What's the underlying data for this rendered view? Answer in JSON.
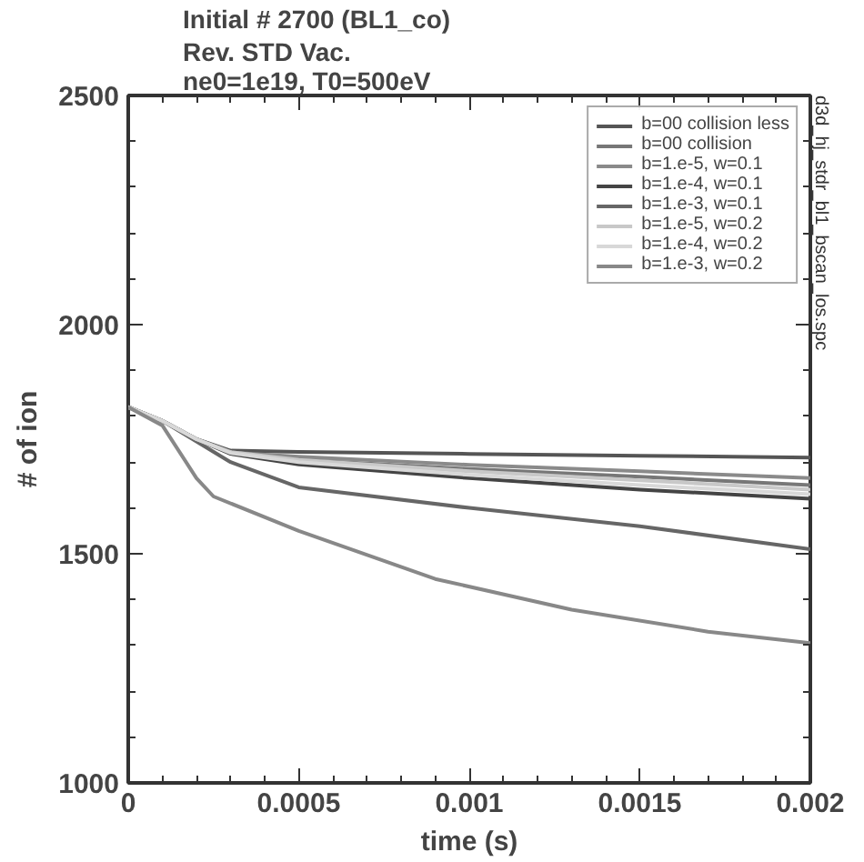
{
  "chart_data": {
    "type": "line",
    "title": "Initial  #  2700 (BL1_co)",
    "subtitle": "Rev. STD Vac.\nne0=1e19, T0=500eV",
    "xlabel": "time (s)",
    "ylabel": "# of ion",
    "x": [
      0,
      0.0001,
      0.0002,
      0.0003,
      0.0005,
      0.001,
      0.0015,
      0.002
    ],
    "series": [
      {
        "name": "b=00 collision less",
        "color": "#555555",
        "values": [
          1820,
          1790,
          1750,
          1725,
          1722,
          1718,
          1714,
          1710
        ]
      },
      {
        "name": "b=00 collision",
        "color": "#777777",
        "values": [
          1820,
          1790,
          1750,
          1722,
          1705,
          1685,
          1668,
          1650
        ]
      },
      {
        "name": "b=1.e-5, w=0.1",
        "color": "#8a8a8a",
        "values": [
          1820,
          1790,
          1750,
          1721,
          1712,
          1694,
          1680,
          1665
        ]
      },
      {
        "name": "b=1.e-4, w=0.1",
        "color": "#444444",
        "values": [
          1820,
          1790,
          1750,
          1718,
          1695,
          1665,
          1640,
          1620
        ]
      },
      {
        "name": "b=1.e-3, w=0.1",
        "color": "#666666",
        "values": [
          1820,
          1790,
          1745,
          1700,
          1645,
          1600,
          1560,
          1510
        ]
      },
      {
        "name": "b=1.e-5, w=0.2",
        "color": "#c8c8c8",
        "values": [
          1820,
          1790,
          1750,
          1722,
          1705,
          1680,
          1660,
          1640
        ]
      },
      {
        "name": "b=1.e-4, w=0.2",
        "color": "#d8d8d8",
        "values": [
          1820,
          1790,
          1750,
          1720,
          1700,
          1672,
          1650,
          1630
        ]
      },
      {
        "name": "b=1.e-3, w=0.2",
        "color": "#888888",
        "x": [
          0,
          0.0001,
          0.0002,
          0.00025,
          0.0005,
          0.0009,
          0.0013,
          0.0017,
          0.002
        ],
        "values": [
          1820,
          1780,
          1665,
          1625,
          1550,
          1445,
          1378,
          1330,
          1305
        ]
      }
    ],
    "xlim": [
      0,
      0.002
    ],
    "ylim": [
      1000,
      2500
    ],
    "xticks": [
      0,
      0.0005,
      0.001,
      0.0015,
      0.002
    ],
    "yticks": [
      1000,
      1500,
      2000,
      2500
    ],
    "legend": "top right",
    "grid": false,
    "annotations": [
      "d3d_hj_stdr_bl1_bscan_los.spc"
    ]
  }
}
